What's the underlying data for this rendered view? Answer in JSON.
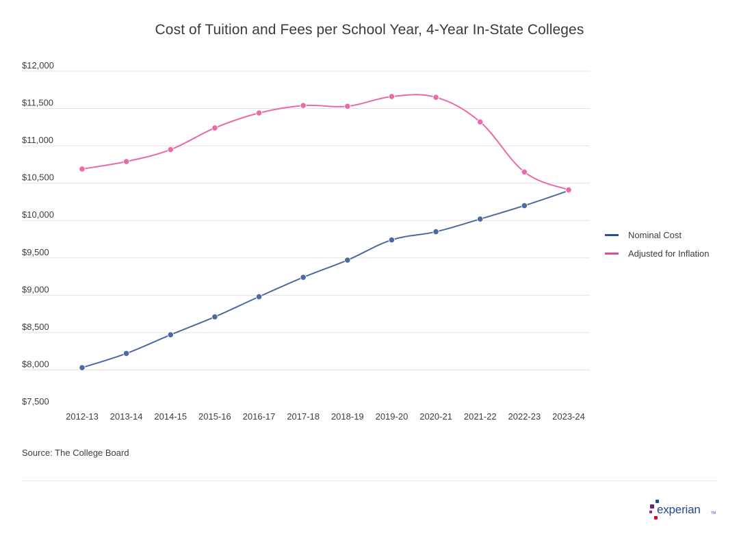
{
  "colors": {
    "nominal": "#4b6aa2",
    "inflation": "#ea6aa9",
    "legend_nominal": "#2c4f9a",
    "legend_inflation": "#e2489a",
    "grid": "#e3e3e3"
  },
  "chart_data": {
    "type": "line",
    "title": "Cost of Tuition and Fees per School Year, 4-Year In-State Colleges",
    "xlabel": "",
    "ylabel": "",
    "categories": [
      "2012-13",
      "2013-14",
      "2014-15",
      "2015-16",
      "2016-17",
      "2017-18",
      "2018-19",
      "2019-20",
      "2020-21",
      "2021-22",
      "2022-23",
      "2023-24"
    ],
    "series": [
      {
        "name": "Nominal Cost",
        "values": [
          8030,
          8220,
          8470,
          8710,
          8980,
          9240,
          9470,
          9740,
          9850,
          10020,
          10200,
          10400
        ]
      },
      {
        "name": "Adjusted for Inflation",
        "values": [
          10690,
          10790,
          10950,
          11240,
          11440,
          11540,
          11530,
          11660,
          11650,
          11320,
          10650,
          10410
        ]
      }
    ],
    "ylim": [
      7500,
      12000
    ],
    "yticks": [
      7500,
      8000,
      8500,
      9000,
      9500,
      10000,
      10500,
      11000,
      11500,
      12000
    ],
    "ytick_labels": [
      "$7,500",
      "$8,000",
      "$8,500",
      "$9,000",
      "$9,500",
      "$10,000",
      "$10,500",
      "$11,000",
      "$11,500",
      "$12,000"
    ],
    "grid": true,
    "legend_position": "right"
  },
  "legend": {
    "nominal_label": "Nominal Cost",
    "inflation_label": "Adjusted for Inflation"
  },
  "footer": {
    "source": "Source: The College Board"
  },
  "brand": {
    "name": "experian",
    "tm": "TM",
    "icon": "experian-dots-icon"
  }
}
